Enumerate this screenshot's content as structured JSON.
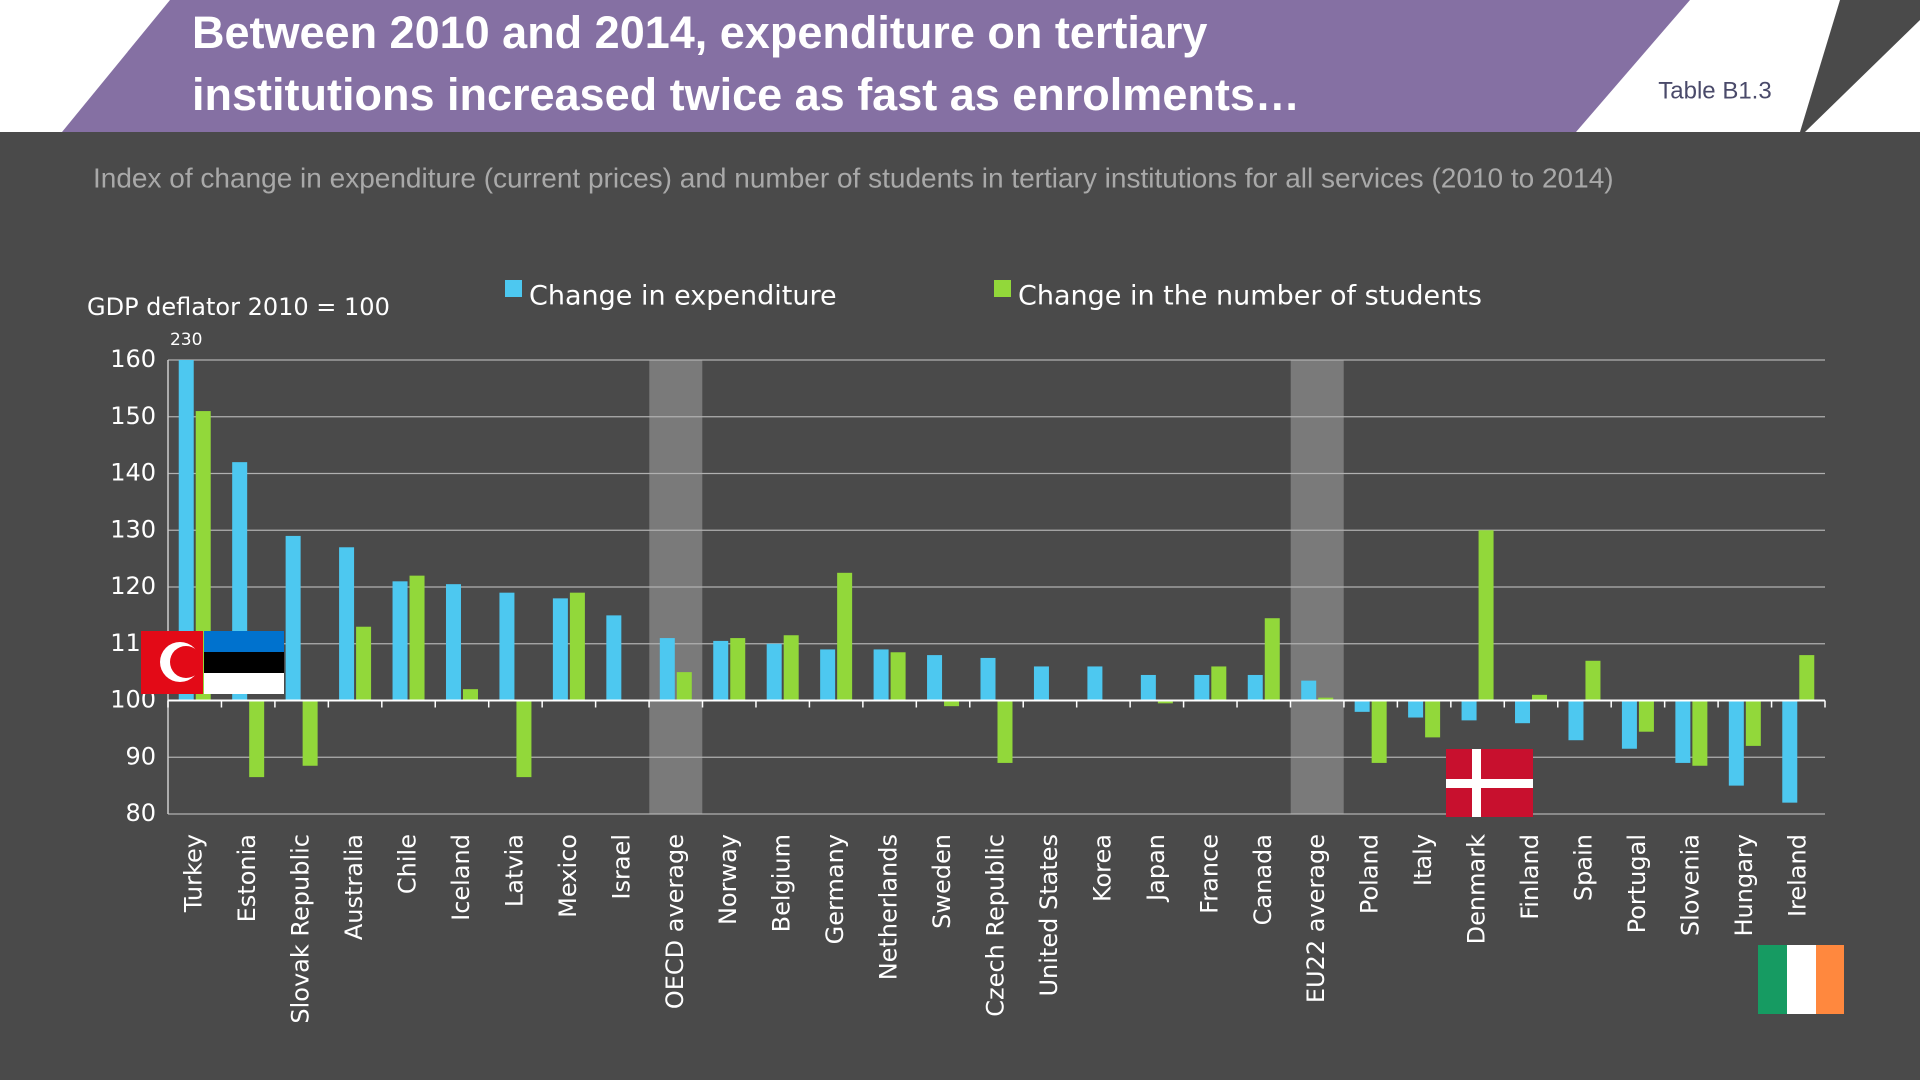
{
  "header": {
    "title_lines": [
      "Between 2010 and 2014, expenditure on tertiary",
      "institutions increased twice as fast as enrolments…"
    ],
    "tag": "Table B1.3"
  },
  "chart_data": {
    "type": "bar",
    "subtitle": "Index of change in expenditure (current prices) and number of students in tertiary institutions for all services (2010 to 2014)",
    "y_label": "GDP deflator 2010 = 100",
    "categories": [
      "Turkey",
      "Estonia",
      "Slovak Republic",
      "Australia",
      "Chile",
      "Iceland",
      "Latvia",
      "Mexico",
      "Israel",
      "OECD average",
      "Norway",
      "Belgium",
      "Germany",
      "Netherlands",
      "Sweden",
      "Czech Republic",
      "United States",
      "Korea",
      "Japan",
      "France",
      "Canada",
      "EU22 average",
      "Poland",
      "Italy",
      "Denmark",
      "Finland",
      "Spain",
      "Portugal",
      "Slovenia",
      "Hungary",
      "Ireland"
    ],
    "series": [
      {
        "name": "Change in expenditure",
        "color": "#4dc8f0",
        "values": [
          230,
          142,
          129,
          127,
          121,
          120.5,
          119,
          118,
          115,
          111,
          110.5,
          110,
          109,
          109,
          108,
          107.5,
          106,
          106,
          104.5,
          104.5,
          104.5,
          103.5,
          98,
          97,
          96.5,
          96,
          93,
          91.5,
          89,
          85,
          82
        ],
        "value_labels": [
          "230",
          null,
          null,
          null,
          null,
          null,
          null,
          null,
          null,
          null,
          null,
          null,
          null,
          null,
          null,
          null,
          null,
          null,
          null,
          null,
          null,
          null,
          null,
          null,
          null,
          null,
          null,
          null,
          null,
          null,
          null
        ]
      },
      {
        "name": "Change in the number of students",
        "color": "#92d83a",
        "values": [
          151,
          86.5,
          88.5,
          113,
          122,
          102,
          86.5,
          119,
          null,
          105,
          111,
          111.5,
          122.5,
          108.5,
          99,
          89,
          null,
          100,
          99.5,
          106,
          114.5,
          100.5,
          89,
          93.5,
          130,
          101,
          107,
          94.5,
          88.5,
          92,
          108
        ]
      }
    ],
    "baseline": 100,
    "highlighted_indices": [
      9,
      21
    ],
    "ylim": [
      80,
      160
    ],
    "yticks": [
      80,
      90,
      100,
      110,
      120,
      130,
      140,
      150,
      160
    ],
    "grid": true
  }
}
